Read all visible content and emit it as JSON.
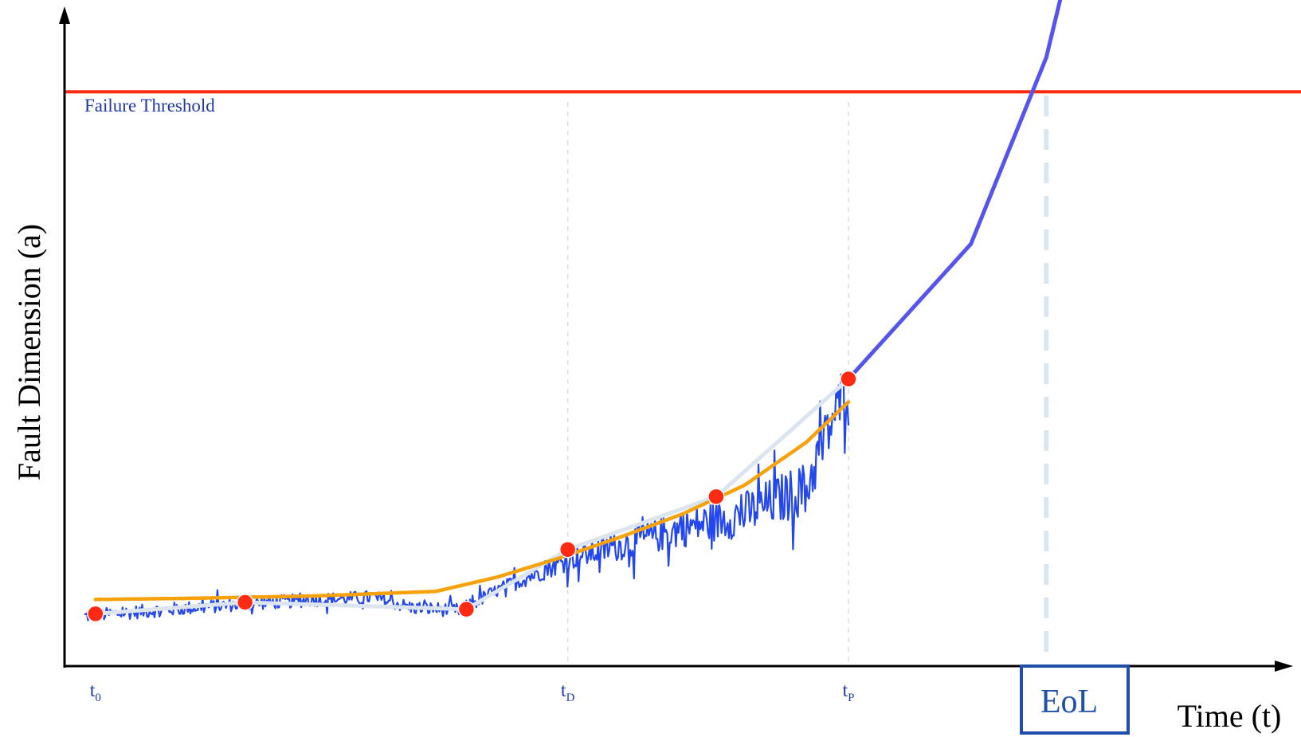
{
  "chart_data": {
    "type": "line",
    "title": "",
    "xlabel": "Time (t)",
    "ylabel": "Fault Dimension (a)",
    "grid": false,
    "threshold": {
      "label": "Failure Threshold",
      "value": 1.0,
      "color": "#ff2a12"
    },
    "xlim": [
      0,
      1.0
    ],
    "ylim": [
      0,
      1.16
    ],
    "ticks": [
      {
        "x": 0.025,
        "main": "t",
        "sub": "0"
      },
      {
        "x": 0.407,
        "main": "t",
        "sub": "D"
      },
      {
        "x": 0.634,
        "main": "t",
        "sub": "P"
      }
    ],
    "eol": {
      "x": 0.794,
      "label": "EoL",
      "color": "#1f4fa8"
    },
    "series": [
      {
        "kind": "noisy-measurements",
        "color": "#2347ee",
        "x": [
          0.016,
          0.05,
          0.1,
          0.15,
          0.2,
          0.25,
          0.28,
          0.32,
          0.35,
          0.38,
          0.41,
          0.45,
          0.5,
          0.55,
          0.6,
          0.634
        ],
        "y": [
          0.087,
          0.093,
          0.101,
          0.109,
          0.115,
          0.12,
          0.102,
          0.097,
          0.132,
          0.16,
          0.188,
          0.21,
          0.24,
          0.265,
          0.31,
          0.5
        ]
      },
      {
        "kind": "smoothed-estimate",
        "color": "#dbe4ef",
        "x": [
          0.025,
          0.146,
          0.325,
          0.407,
          0.527,
          0.634
        ],
        "y": [
          0.091,
          0.111,
          0.099,
          0.203,
          0.295,
          0.5
        ]
      },
      {
        "kind": "fitted-trend",
        "color": "#f5a20c",
        "x": [
          0.025,
          0.1,
          0.2,
          0.3,
          0.35,
          0.4,
          0.45,
          0.5,
          0.55,
          0.6,
          0.634
        ],
        "y": [
          0.116,
          0.118,
          0.122,
          0.13,
          0.155,
          0.188,
          0.225,
          0.265,
          0.315,
          0.39,
          0.46
        ]
      },
      {
        "kind": "prognosis",
        "color": "#5555ee",
        "x": [
          0.634,
          0.733,
          0.794,
          0.822
        ],
        "y": [
          0.5,
          0.735,
          1.06,
          1.31
        ]
      }
    ],
    "key_points": {
      "color": "#ff2a12",
      "x": [
        0.025,
        0.146,
        0.325,
        0.407,
        0.527,
        0.634
      ],
      "y": [
        0.091,
        0.111,
        0.099,
        0.203,
        0.295,
        0.5
      ]
    }
  }
}
